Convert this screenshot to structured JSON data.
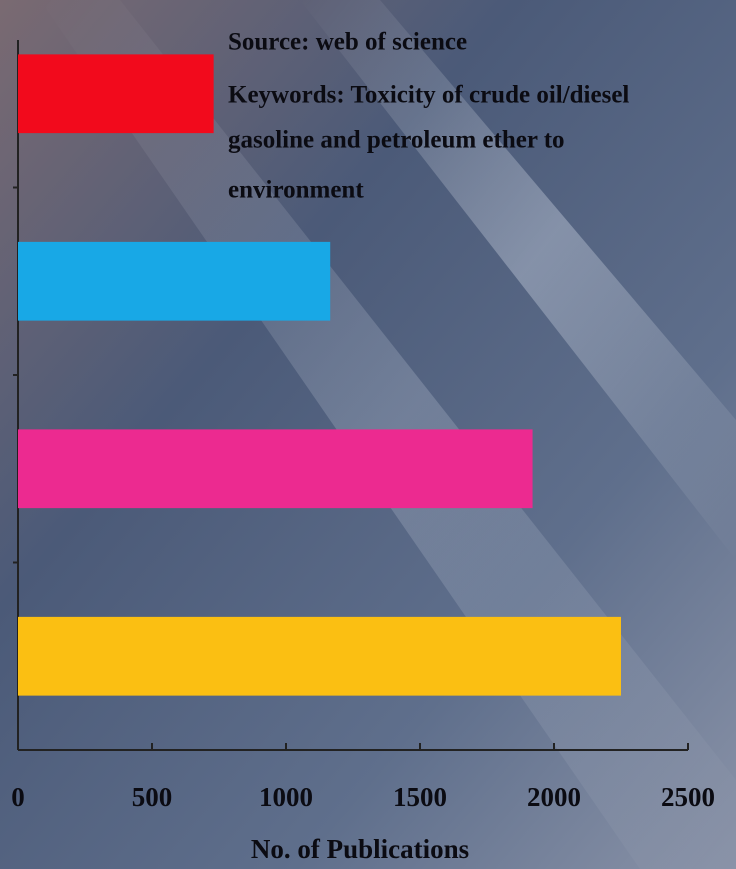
{
  "chart_data": {
    "type": "hbar",
    "annotations": [
      "Source: web of science",
      "Keywords:  Toxicity of crude oil/diesel",
      "gasoline and petroleum  ether to",
      "environment"
    ],
    "x_label": "No. of Publications",
    "categories": [
      null,
      null,
      null,
      null
    ],
    "values": [
      730,
      1165,
      1920,
      2250
    ],
    "colors": [
      "#f20a1c",
      "#18a8e6",
      "#ec2a90",
      "#fbbf12"
    ],
    "xlim": [
      0,
      2500
    ],
    "xticks": [
      0,
      500,
      1000,
      1500,
      2000,
      2500
    ]
  }
}
